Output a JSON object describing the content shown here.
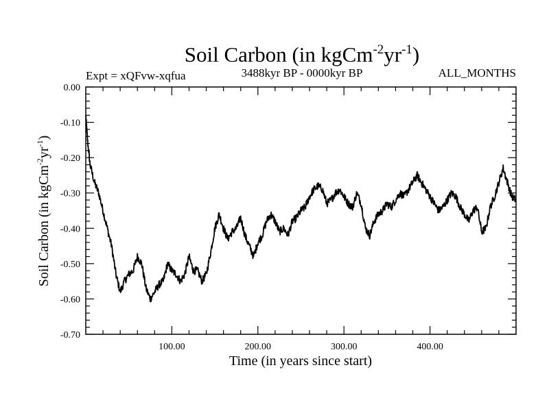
{
  "chart_data": {
    "type": "line",
    "title": {
      "base": "Soil Carbon (in kgCm",
      "sup1": "-2",
      "mid": "yr",
      "sup2": "-1",
      "end": ")"
    },
    "header_left": "Expt = xQFvw-xqfua",
    "header_center": "3488kyr BP - 0000kyr BP",
    "header_right": "ALL_MONTHS",
    "xlabel": "Time (in years since start)",
    "ylabel": {
      "base": "Soil Carbon (in kgCm",
      "sup1": "-2",
      "mid": "yr",
      "sup2": "-1",
      "end": ")"
    },
    "xlim": [
      0,
      500
    ],
    "ylim": [
      -0.7,
      0.0
    ],
    "x_ticks": [
      100,
      200,
      300,
      400
    ],
    "x_tick_labels": [
      "100.00",
      "200.00",
      "300.00",
      "400.00"
    ],
    "y_ticks": [
      0.0,
      -0.1,
      -0.2,
      -0.3,
      -0.4,
      -0.5,
      -0.6,
      -0.7
    ],
    "y_tick_labels": [
      "0.00",
      "-0.10",
      "-0.20",
      "-0.30",
      "-0.40",
      "-0.50",
      "-0.60",
      "-0.70"
    ],
    "series": [
      {
        "name": "Soil Carbon",
        "color": "#000000",
        "x": [
          0,
          2,
          5,
          10,
          15,
          20,
          25,
          30,
          35,
          40,
          45,
          50,
          55,
          60,
          65,
          70,
          75,
          80,
          85,
          90,
          95,
          100,
          105,
          110,
          115,
          120,
          125,
          130,
          135,
          140,
          145,
          150,
          155,
          160,
          165,
          170,
          175,
          180,
          185,
          190,
          195,
          200,
          205,
          210,
          215,
          220,
          225,
          230,
          235,
          240,
          245,
          250,
          255,
          260,
          265,
          270,
          275,
          280,
          285,
          290,
          295,
          300,
          305,
          310,
          315,
          320,
          325,
          330,
          335,
          340,
          345,
          350,
          355,
          360,
          365,
          370,
          375,
          380,
          385,
          390,
          395,
          400,
          405,
          410,
          415,
          420,
          425,
          430,
          435,
          440,
          445,
          450,
          455,
          460,
          465,
          470,
          475,
          480,
          485,
          490,
          495,
          500
        ],
        "values": [
          -0.08,
          -0.15,
          -0.22,
          -0.27,
          -0.3,
          -0.35,
          -0.4,
          -0.45,
          -0.53,
          -0.58,
          -0.55,
          -0.53,
          -0.52,
          -0.48,
          -0.5,
          -0.57,
          -0.6,
          -0.58,
          -0.56,
          -0.55,
          -0.5,
          -0.52,
          -0.53,
          -0.55,
          -0.53,
          -0.48,
          -0.52,
          -0.52,
          -0.55,
          -0.53,
          -0.47,
          -0.4,
          -0.36,
          -0.4,
          -0.43,
          -0.41,
          -0.4,
          -0.37,
          -0.42,
          -0.45,
          -0.48,
          -0.44,
          -0.42,
          -0.38,
          -0.36,
          -0.38,
          -0.41,
          -0.4,
          -0.42,
          -0.38,
          -0.37,
          -0.35,
          -0.34,
          -0.31,
          -0.29,
          -0.28,
          -0.29,
          -0.33,
          -0.32,
          -0.3,
          -0.29,
          -0.31,
          -0.33,
          -0.34,
          -0.3,
          -0.33,
          -0.4,
          -0.42,
          -0.38,
          -0.36,
          -0.35,
          -0.33,
          -0.34,
          -0.32,
          -0.3,
          -0.31,
          -0.29,
          -0.27,
          -0.25,
          -0.27,
          -0.29,
          -0.31,
          -0.33,
          -0.35,
          -0.34,
          -0.32,
          -0.3,
          -0.31,
          -0.34,
          -0.36,
          -0.38,
          -0.35,
          -0.34,
          -0.41,
          -0.4,
          -0.34,
          -0.31,
          -0.27,
          -0.23,
          -0.27,
          -0.31,
          -0.32
        ]
      }
    ]
  }
}
